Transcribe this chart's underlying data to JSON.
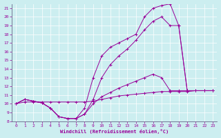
{
  "xlabel": "Windchill (Refroidissement éolien,°C)",
  "bg_color": "#cceef0",
  "line_color": "#990099",
  "xlim": [
    -0.5,
    23.5
  ],
  "ylim": [
    8,
    21.5
  ],
  "xticks": [
    0,
    1,
    2,
    3,
    4,
    5,
    6,
    7,
    8,
    9,
    10,
    11,
    12,
    13,
    14,
    15,
    16,
    17,
    18,
    19,
    20,
    21,
    22,
    23
  ],
  "yticks": [
    8,
    9,
    10,
    11,
    12,
    13,
    14,
    15,
    16,
    17,
    18,
    19,
    20,
    21
  ],
  "series": [
    {
      "x": [
        0,
        1,
        2,
        3,
        4,
        5,
        6,
        7,
        8,
        9,
        10,
        11,
        12,
        13,
        14,
        15,
        16,
        17,
        18,
        19,
        20,
        21,
        22,
        23
      ],
      "y": [
        10,
        10.5,
        10.3,
        10.1,
        9.5,
        8.5,
        8.3,
        8.3,
        9.5,
        13.0,
        15.5,
        16.5,
        17.0,
        17.5,
        18.0,
        20.0,
        21.0,
        21.3,
        21.5,
        19.0,
        11.5,
        11.5,
        11.5,
        11.5
      ]
    },
    {
      "x": [
        0,
        1,
        2,
        3,
        4,
        5,
        6,
        7,
        8,
        9,
        10,
        11,
        12,
        13,
        14,
        15,
        16,
        17,
        18,
        19,
        20,
        21,
        22,
        23
      ],
      "y": [
        10,
        10.5,
        10.3,
        10.1,
        9.5,
        8.5,
        8.3,
        8.3,
        8.8,
        10.5,
        13.0,
        14.5,
        15.5,
        16.3,
        17.3,
        18.5,
        19.5,
        20.0,
        19.0,
        19.0,
        11.5,
        11.5,
        11.5,
        11.5
      ]
    },
    {
      "x": [
        0,
        1,
        2,
        3,
        4,
        5,
        6,
        7,
        8,
        9,
        10,
        11,
        12,
        13,
        14,
        15,
        16,
        17,
        18,
        19,
        20,
        21,
        22,
        23
      ],
      "y": [
        10,
        10.5,
        10.3,
        10.1,
        9.5,
        8.5,
        8.3,
        8.3,
        8.8,
        10.0,
        10.8,
        11.3,
        11.8,
        12.2,
        12.6,
        13.0,
        13.4,
        13.0,
        11.5,
        11.5,
        11.5,
        11.5,
        11.5,
        11.5
      ]
    },
    {
      "x": [
        0,
        1,
        2,
        3,
        4,
        5,
        6,
        7,
        8,
        9,
        10,
        11,
        12,
        13,
        14,
        15,
        16,
        17,
        18,
        19,
        20,
        21,
        22,
        23
      ],
      "y": [
        10,
        10.2,
        10.2,
        10.2,
        10.2,
        10.2,
        10.2,
        10.2,
        10.2,
        10.3,
        10.5,
        10.7,
        10.9,
        11.0,
        11.1,
        11.2,
        11.3,
        11.4,
        11.4,
        11.4,
        11.4,
        11.5,
        11.5,
        11.5
      ]
    }
  ]
}
